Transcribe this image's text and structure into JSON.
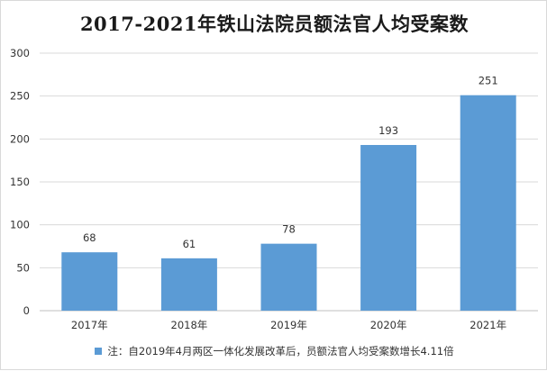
{
  "colors": {
    "bar": "#5b9bd5",
    "grid": "#d9d9d9",
    "axis": "#bfbfbf"
  },
  "chart_data": {
    "type": "bar",
    "title": "2017-2021年铁山法院员额法官人均受案数",
    "categories": [
      "2017年",
      "2018年",
      "2019年",
      "2020年",
      "2021年"
    ],
    "series": [
      {
        "name": "注：自2019年4月两区一体化发展改革后，员额法官人均受案数增长4.11倍",
        "values": [
          68,
          61,
          78,
          193,
          251
        ]
      }
    ],
    "ylim": [
      0,
      300
    ],
    "yticks": [
      0,
      50,
      100,
      150,
      200,
      250,
      300
    ],
    "grid": true,
    "legend": "bottom",
    "xlabel": "",
    "ylabel": ""
  }
}
